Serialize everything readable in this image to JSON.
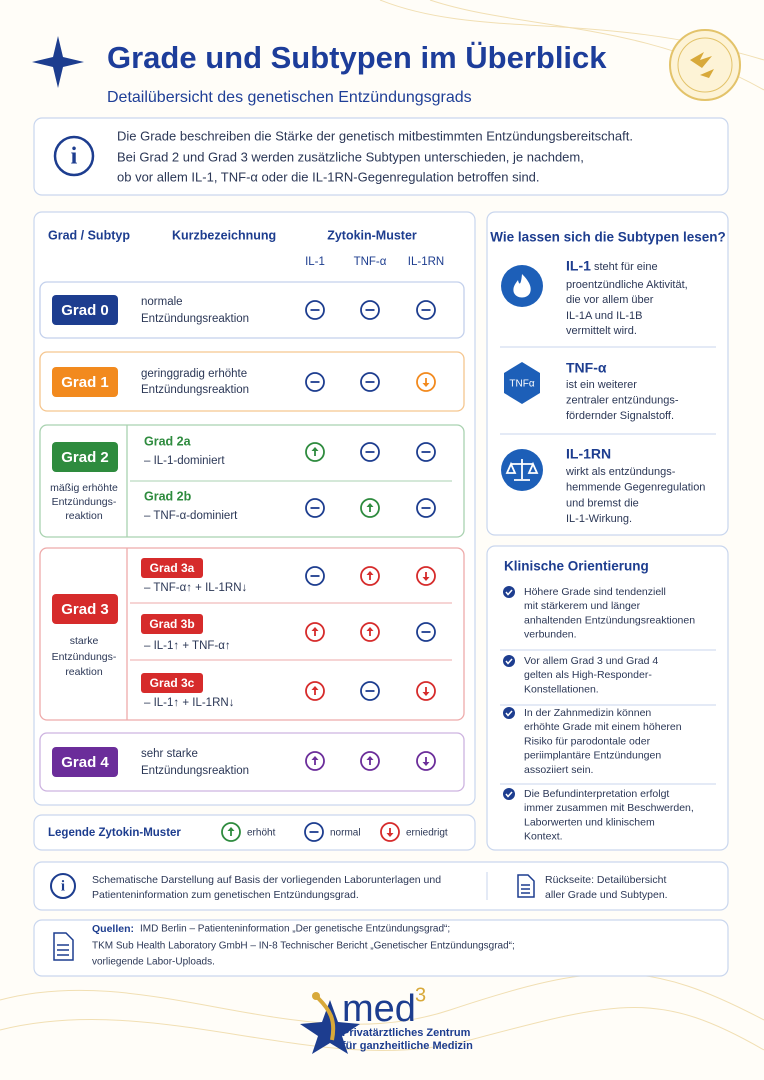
{
  "header": {
    "title": "Grade und Subtypen im Überblick",
    "subtitle": "Detailübersicht des genetischen Entzündungsgrads"
  },
  "intro": {
    "lines": [
      "Die Grade beschreiben die Stärke der genetisch mitbestimmten Entzündungsbereitschaft.",
      "Bei Grad 2 und Grad 3 werden zusätzliche Subtypen unterschieden, je nachdem,",
      "ob vor allem IL-1, TNF-α oder die IL-1RN-Gegenregulation betroffen sind."
    ]
  },
  "table": {
    "columns": {
      "grade": "Grad / Subtyp",
      "short": "Kurzbezeichnung",
      "pattern": "Zytokin-Muster",
      "cytokines": [
        "IL-1",
        "TNF-α",
        "IL-1RN"
      ]
    },
    "grades": [
      {
        "badge": "Grad 0",
        "description": [
          "normale",
          "Entzündungsreaktion"
        ]
      },
      {
        "badge": "Grad 1",
        "description": [
          "geringgradig erhöhte",
          "Entzündungsreaktion"
        ]
      },
      {
        "badge": "Grad 2",
        "note": [
          "mäßig erhöhte",
          "Entzündungs-",
          "reaktion"
        ],
        "subtypes": [
          {
            "name": "Grad 2a",
            "description": "– IL-1-dominiert"
          },
          {
            "name": "Grad 2b",
            "description": "– TNF-α-dominiert"
          }
        ]
      },
      {
        "badge": "Grad 3",
        "note": [
          "starke",
          "Entzündungs-",
          "reaktion"
        ],
        "subtypes": [
          {
            "name": "Grad 3a",
            "description": "– TNF-α↑ + IL-1RN↓"
          },
          {
            "name": "Grad 3b",
            "description": "– IL-1↑ + TNF-α↑"
          },
          {
            "name": "Grad 3c",
            "description": "– IL-1↑ + IL-1RN↓"
          }
        ]
      },
      {
        "badge": "Grad 4",
        "description": [
          "sehr starke",
          "Entzündungsreaktion"
        ]
      }
    ]
  },
  "legend": {
    "title": "Legende Zytokin-Muster",
    "items": [
      "erhöht",
      "normal",
      "erniedrigt"
    ]
  },
  "reading": {
    "title": "Wie lassen sich die Subtypen lesen?",
    "items": [
      {
        "term": "IL-1",
        "lines": [
          "steht für eine",
          "proentzündliche Aktivität,",
          "die vor allem über",
          "IL-1A und IL-1B",
          "vermittelt wird."
        ]
      },
      {
        "term": "TNF-α",
        "icon_label": "TNFα",
        "lines": [
          "ist ein weiterer",
          "zentraler entzündungs-",
          "fördernder Signalstoff."
        ]
      },
      {
        "term": "IL-1RN",
        "lines": [
          "wirkt als entzündungs-",
          "hemmende Gegenregulation",
          "und bremst die",
          "IL-1-Wirkung."
        ]
      }
    ]
  },
  "clinical": {
    "title": "Klinische Orientierung",
    "items": [
      [
        "Höhere Grade sind tendenziell",
        "mit stärkerem und länger",
        "anhaltenden Entzündungsreaktionen",
        "verbunden."
      ],
      [
        "Vor allem Grad 3 und Grad 4",
        "gelten als High-Responder-",
        "Konstellationen."
      ],
      [
        "In der Zahnmedizin können",
        "erhöhte Grade mit einem höheren",
        "Risiko für parodontale oder",
        "periimplantäre Entzündungen",
        "assoziiert sein."
      ],
      [
        "Die Befundinterpretation erfolgt",
        "immer zusammen mit Beschwerden,",
        "Laborwerten und klinischem",
        "Kontext."
      ]
    ]
  },
  "footer": {
    "note": [
      "Schematische Darstellung auf Basis der vorliegenden Laborunterlagen und",
      "Patienteninformation zum genetischen Entzündungsgrad."
    ],
    "back": [
      "Rückseite: Detailübersicht",
      "aller Grade und Subtypen."
    ]
  },
  "sources": {
    "label": "Quellen:",
    "lines": [
      "IMD Berlin – Patienteninformation „Der genetische Entzündungsgrad“;",
      "TKM Sub Health Laboratory GmbH – IN-8 Technischer Bericht „Genetischer Entzündungsgrad“;",
      "vorliegende Labor-Uploads."
    ]
  },
  "logo": {
    "name": "med",
    "superscript": "3",
    "tagline": [
      "Privatärztliches Zentrum",
      "für ganzheitliche Medizin"
    ]
  }
}
